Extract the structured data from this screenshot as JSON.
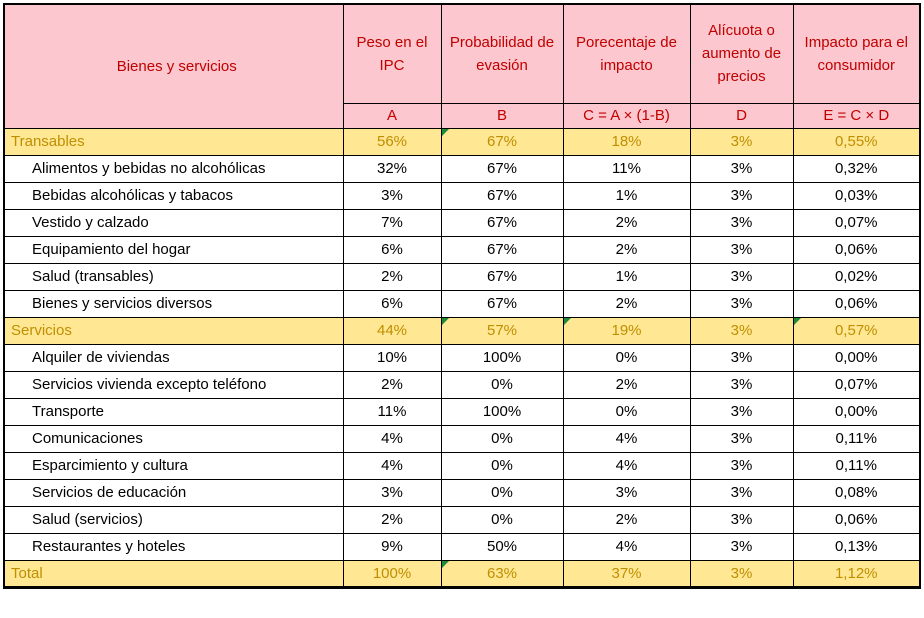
{
  "colors": {
    "header_bg": "#FCC7CE",
    "header_text": "#C00000",
    "highlight_row_bg": "#FFE794",
    "highlight_row_text": "#BF8F00",
    "border": "#000000",
    "error_indicator_green": "#1E8A3C",
    "data_text": "#000000",
    "data_bg": "#FFFFFF"
  },
  "chart_data": {
    "type": "table",
    "title": "",
    "columns": [
      {
        "label": "Bienes y servicios",
        "code": ""
      },
      {
        "label": "Peso en el IPC",
        "code": "A"
      },
      {
        "label": "Probabilidad de evasión",
        "code": "B"
      },
      {
        "label": "Porecentaje de impacto",
        "code": "C = A × (1-B)"
      },
      {
        "label": "Alícuota o aumento de precios",
        "code": "D"
      },
      {
        "label": "Impacto para el consumidor",
        "code": "E = C × D"
      }
    ],
    "rows": [
      {
        "label": "Transables",
        "type": "category",
        "values": [
          "56%",
          "67%",
          "18%",
          "3%",
          "0,55%"
        ],
        "error_flags": [
          false,
          true,
          false,
          false,
          false
        ]
      },
      {
        "label": "Alimentos y bebidas no alcohólicas",
        "type": "item",
        "values": [
          "32%",
          "67%",
          "11%",
          "3%",
          "0,32%"
        ],
        "error_flags": [
          false,
          false,
          false,
          false,
          false
        ]
      },
      {
        "label": "Bebidas alcohólicas y tabacos",
        "type": "item",
        "values": [
          "3%",
          "67%",
          "1%",
          "3%",
          "0,03%"
        ],
        "error_flags": [
          false,
          false,
          false,
          false,
          false
        ]
      },
      {
        "label": "Vestido y calzado",
        "type": "item",
        "values": [
          "7%",
          "67%",
          "2%",
          "3%",
          "0,07%"
        ],
        "error_flags": [
          false,
          false,
          false,
          false,
          false
        ]
      },
      {
        "label": "Equipamiento del hogar",
        "type": "item",
        "values": [
          "6%",
          "67%",
          "2%",
          "3%",
          "0,06%"
        ],
        "error_flags": [
          false,
          false,
          false,
          false,
          false
        ]
      },
      {
        "label": "Salud (transables)",
        "type": "item",
        "values": [
          "2%",
          "67%",
          "1%",
          "3%",
          "0,02%"
        ],
        "error_flags": [
          false,
          false,
          false,
          false,
          false
        ]
      },
      {
        "label": "Bienes y servicios diversos",
        "type": "item",
        "values": [
          "6%",
          "67%",
          "2%",
          "3%",
          "0,06%"
        ],
        "error_flags": [
          false,
          false,
          false,
          false,
          false
        ]
      },
      {
        "label": "Servicios",
        "type": "category",
        "values": [
          "44%",
          "57%",
          "19%",
          "3%",
          "0,57%"
        ],
        "error_flags": [
          false,
          true,
          true,
          false,
          true
        ]
      },
      {
        "label": "Alquiler de viviendas",
        "type": "item",
        "values": [
          "10%",
          "100%",
          "0%",
          "3%",
          "0,00%"
        ],
        "error_flags": [
          false,
          false,
          false,
          false,
          false
        ]
      },
      {
        "label": "Servicios vivienda excepto teléfono",
        "type": "item",
        "values": [
          "2%",
          "0%",
          "2%",
          "3%",
          "0,07%"
        ],
        "error_flags": [
          false,
          false,
          false,
          false,
          false
        ]
      },
      {
        "label": "Transporte",
        "type": "item",
        "values": [
          "11%",
          "100%",
          "0%",
          "3%",
          "0,00%"
        ],
        "error_flags": [
          false,
          false,
          false,
          false,
          false
        ]
      },
      {
        "label": "Comunicaciones",
        "type": "item",
        "values": [
          "4%",
          "0%",
          "4%",
          "3%",
          "0,11%"
        ],
        "error_flags": [
          false,
          false,
          false,
          false,
          false
        ]
      },
      {
        "label": "Esparcimiento y cultura",
        "type": "item",
        "values": [
          "4%",
          "0%",
          "4%",
          "3%",
          "0,11%"
        ],
        "error_flags": [
          false,
          false,
          false,
          false,
          false
        ]
      },
      {
        "label": "Servicios de educación",
        "type": "item",
        "values": [
          "3%",
          "0%",
          "3%",
          "3%",
          "0,08%"
        ],
        "error_flags": [
          false,
          false,
          false,
          false,
          false
        ]
      },
      {
        "label": "Salud (servicios)",
        "type": "item",
        "values": [
          "2%",
          "0%",
          "2%",
          "3%",
          "0,06%"
        ],
        "error_flags": [
          false,
          false,
          false,
          false,
          false
        ]
      },
      {
        "label": "Restaurantes y hoteles",
        "type": "item",
        "values": [
          "9%",
          "50%",
          "4%",
          "3%",
          "0,13%"
        ],
        "error_flags": [
          false,
          false,
          false,
          false,
          false
        ]
      },
      {
        "label": "Total",
        "type": "total",
        "values": [
          "100%",
          "63%",
          "37%",
          "3%",
          "1,12%"
        ],
        "error_flags": [
          false,
          true,
          false,
          false,
          false
        ]
      }
    ]
  }
}
